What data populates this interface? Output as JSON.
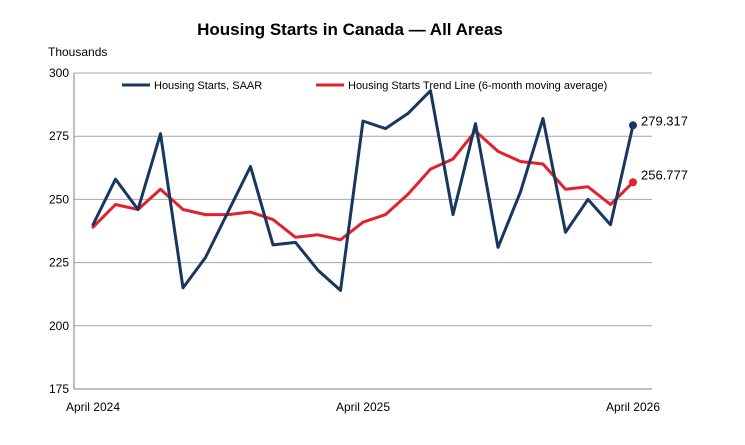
{
  "chart_data": {
    "type": "line",
    "title": "Housing Starts in Canada — All Areas",
    "ylabel": "Thousands",
    "xlabel": "",
    "ylim": [
      175,
      300
    ],
    "yticks": [
      175,
      200,
      225,
      250,
      275,
      300
    ],
    "x_tick_labels": [
      "April 2024",
      "April 2025",
      "April 2026"
    ],
    "x_tick_indices": [
      0,
      12,
      24
    ],
    "grid": "horizontal",
    "legend_position": "top",
    "series": [
      {
        "name": "Housing Starts, SAAR",
        "color": "#17375E",
        "values": [
          240,
          258,
          246,
          276,
          215,
          227,
          245,
          263,
          232,
          233,
          222,
          214,
          281,
          278,
          284,
          293,
          244,
          280,
          231,
          253,
          282,
          237,
          250,
          240,
          279.317
        ],
        "end_label": "279.317"
      },
      {
        "name": "Housing Starts Trend Line (6-month moving average)",
        "color": "#E3202E",
        "values": [
          239,
          248,
          246,
          254,
          246,
          244,
          244,
          245,
          242,
          235,
          236,
          234,
          241,
          244,
          252,
          262,
          266,
          277,
          269,
          265,
          264,
          254,
          255,
          248,
          256.777
        ],
        "end_label": "256.777"
      }
    ]
  }
}
